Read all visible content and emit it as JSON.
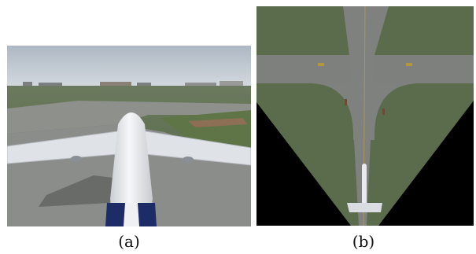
{
  "figure": {
    "panels": [
      {
        "caption": "(a)"
      },
      {
        "caption": "(b)"
      }
    ],
    "colors": {
      "sky": "#b9c3cc",
      "grass": "#556b45",
      "tarmac": "#8d8f8c",
      "aircraft_body": "#e9ecef",
      "aircraft_tail": "#1d2b66",
      "black_mask": "#000000"
    }
  }
}
